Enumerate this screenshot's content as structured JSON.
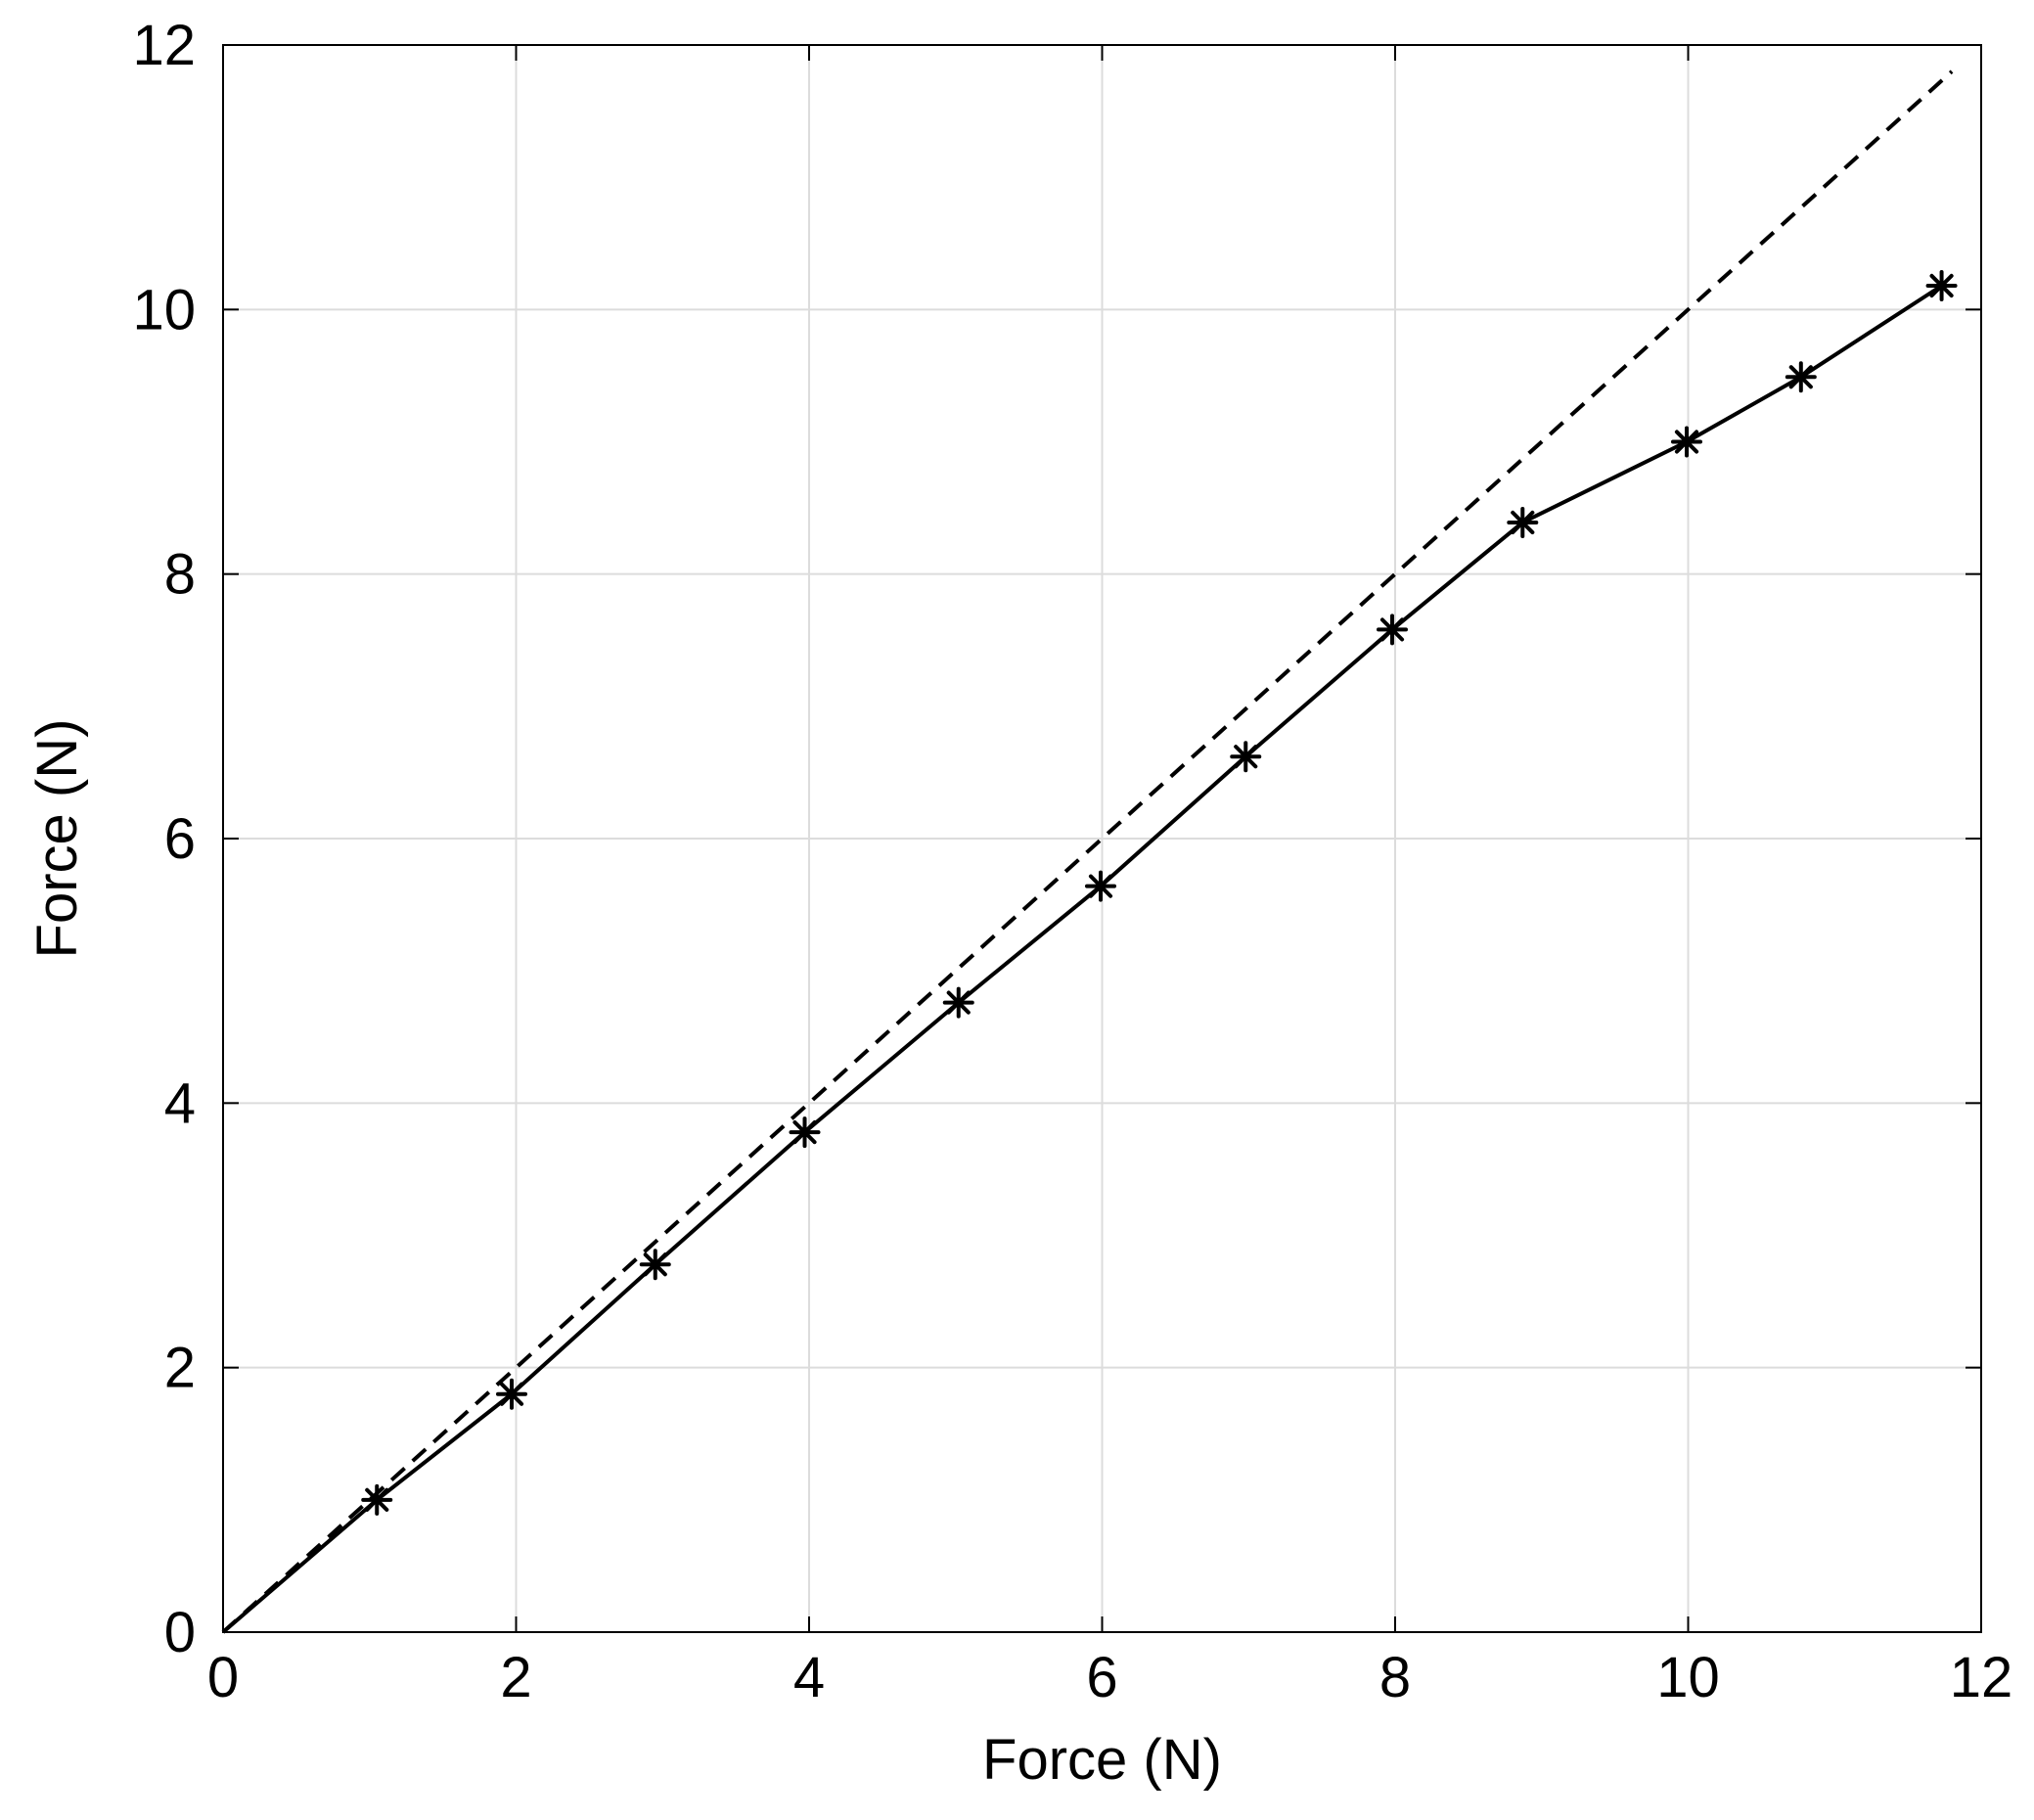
{
  "chart_data": {
    "type": "line",
    "title": "",
    "xlabel": "Force (N)",
    "ylabel": "Force (N)",
    "xlim": [
      0,
      12
    ],
    "ylim": [
      0,
      12
    ],
    "xticks": [
      0,
      2,
      4,
      6,
      8,
      10,
      12
    ],
    "yticks": [
      0,
      2,
      4,
      6,
      8,
      10,
      12
    ],
    "grid": true,
    "legend": "none",
    "series": [
      {
        "style": "solid",
        "marker": "asterisk",
        "color": "#000000",
        "x": [
          0,
          1.05,
          1.97,
          2.95,
          3.97,
          5.02,
          5.99,
          6.98,
          7.98,
          8.87,
          9.99,
          10.77,
          11.73
        ],
        "y": [
          0,
          1.0,
          1.8,
          2.78,
          3.78,
          4.76,
          5.64,
          6.62,
          7.58,
          8.39,
          9.0,
          9.49,
          10.18
        ]
      },
      {
        "style": "dashed",
        "marker": "none",
        "color": "#000000",
        "x": [
          0,
          11.8
        ],
        "y": [
          0,
          11.8
        ]
      }
    ]
  }
}
